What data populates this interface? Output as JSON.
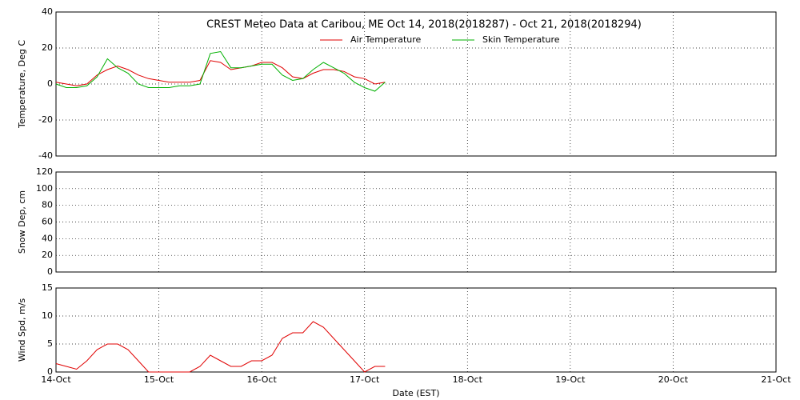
{
  "chart_data": [
    {
      "type": "line",
      "title": "CREST Meteo Data at Caribou, ME   Oct 14, 2018(2018287) - Oct 21, 2018(2018294)",
      "y_label": "Temperature, Deg C",
      "x": [
        0,
        0.1,
        0.2,
        0.3,
        0.4,
        0.5,
        0.6,
        0.7,
        0.8,
        0.9,
        1.0,
        1.1,
        1.2,
        1.3,
        1.4,
        1.5,
        1.6,
        1.7,
        1.8,
        1.9,
        2.0,
        2.1,
        2.2,
        2.3,
        2.4,
        2.5,
        2.6,
        2.7,
        2.8,
        2.9,
        3.0,
        3.1,
        3.2
      ],
      "series": [
        {
          "name": "Air Temperature",
          "color": "#e00000",
          "values": [
            1,
            0,
            -1,
            0,
            5,
            8,
            10,
            8,
            5,
            3,
            2,
            1,
            1,
            1,
            2,
            13,
            12,
            8,
            9,
            10,
            12,
            12,
            9,
            4,
            3,
            6,
            8,
            8,
            7,
            4,
            3,
            0,
            1
          ]
        },
        {
          "name": "Skin Temperature",
          "color": "#00b000",
          "values": [
            0,
            -2,
            -2,
            -1,
            4,
            14,
            9,
            6,
            0,
            -2,
            -2,
            -2,
            -1,
            -1,
            0,
            17,
            18,
            9,
            9,
            10,
            11,
            11,
            5,
            2,
            3,
            8,
            12,
            9,
            6,
            1,
            -2,
            -4,
            1
          ]
        }
      ],
      "xlim": [
        0,
        7
      ],
      "xticks": [
        0,
        1,
        2,
        3,
        4,
        5,
        6,
        7
      ],
      "ylim": [
        -40,
        40
      ],
      "yticks": [
        -40,
        -20,
        0,
        20,
        40
      ],
      "grid": true
    },
    {
      "type": "line",
      "y_label": "Snow Dep, cm",
      "x": [],
      "series": [],
      "xlim": [
        0,
        7
      ],
      "xticks": [
        0,
        1,
        2,
        3,
        4,
        5,
        6,
        7
      ],
      "ylim": [
        0,
        120
      ],
      "yticks": [
        0,
        20,
        40,
        60,
        80,
        100,
        120
      ],
      "grid": true
    },
    {
      "type": "line",
      "y_label": "Wind Spd, m/s",
      "x_label": "Date (EST)",
      "x": [
        0,
        0.1,
        0.2,
        0.3,
        0.4,
        0.5,
        0.6,
        0.7,
        0.8,
        0.9,
        1.0,
        1.1,
        1.2,
        1.3,
        1.4,
        1.5,
        1.6,
        1.7,
        1.8,
        1.9,
        2.0,
        2.1,
        2.2,
        2.3,
        2.4,
        2.5,
        2.6,
        2.7,
        2.8,
        2.9,
        3.0,
        3.1,
        3.2
      ],
      "series": [
        {
          "color": "#e00000",
          "values": [
            1.5,
            1,
            0.5,
            2,
            4,
            5,
            5,
            4,
            2,
            0,
            0,
            0,
            0,
            0,
            1,
            3,
            2,
            1,
            1,
            2,
            2,
            3,
            6,
            7,
            7,
            9,
            8,
            6,
            4,
            2,
            0,
            1,
            1
          ]
        }
      ],
      "xlim": [
        0,
        7
      ],
      "xticks": [
        {
          "value": 0,
          "label": "14-Oct"
        },
        {
          "value": 1,
          "label": "15-Oct"
        },
        {
          "value": 2,
          "label": "16-Oct"
        },
        {
          "value": 3,
          "label": "17-Oct"
        },
        {
          "value": 4,
          "label": "18-Oct"
        },
        {
          "value": 5,
          "label": "19-Oct"
        },
        {
          "value": 6,
          "label": "20-Oct"
        },
        {
          "value": 7,
          "label": "21-Oct"
        }
      ],
      "ylim": [
        0,
        15
      ],
      "yticks": [
        0,
        5,
        10,
        15
      ],
      "grid": true
    }
  ]
}
